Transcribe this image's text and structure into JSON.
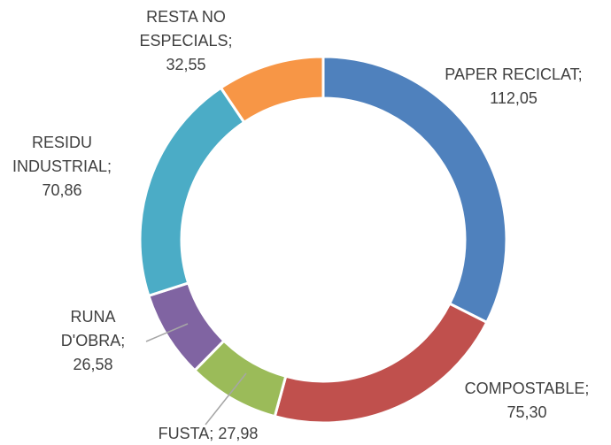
{
  "chart_data": {
    "type": "donut",
    "categories": [
      "PAPER RECICLAT",
      "COMPOSTABLE",
      "FUSTA",
      "RUNA D'OBRA",
      "RESIDU INDUSTRIAL",
      "RESTA NO ESPECIALS"
    ],
    "values": [
      112.05,
      75.3,
      27.98,
      26.58,
      70.86,
      32.55
    ],
    "value_labels": [
      "112,05",
      "75,30",
      "27,98",
      "26,58",
      "70,86",
      "32,55"
    ],
    "label_separator": ";",
    "colors": [
      "#4f81bd",
      "#c0504d",
      "#9bbb59",
      "#8064a2",
      "#4bacc6",
      "#f79646"
    ]
  }
}
